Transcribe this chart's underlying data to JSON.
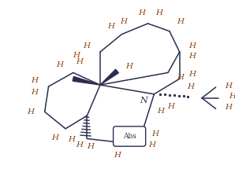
{
  "bg_color": "#ffffff",
  "bond_color": "#2d2d4e",
  "label_color": "#8B4513",
  "n_color": "#2d2d4e",
  "figsize": [
    2.98,
    2.24
  ],
  "dpi": 100,
  "xlim": [
    0,
    298
  ],
  "ylim": [
    0,
    224
  ]
}
